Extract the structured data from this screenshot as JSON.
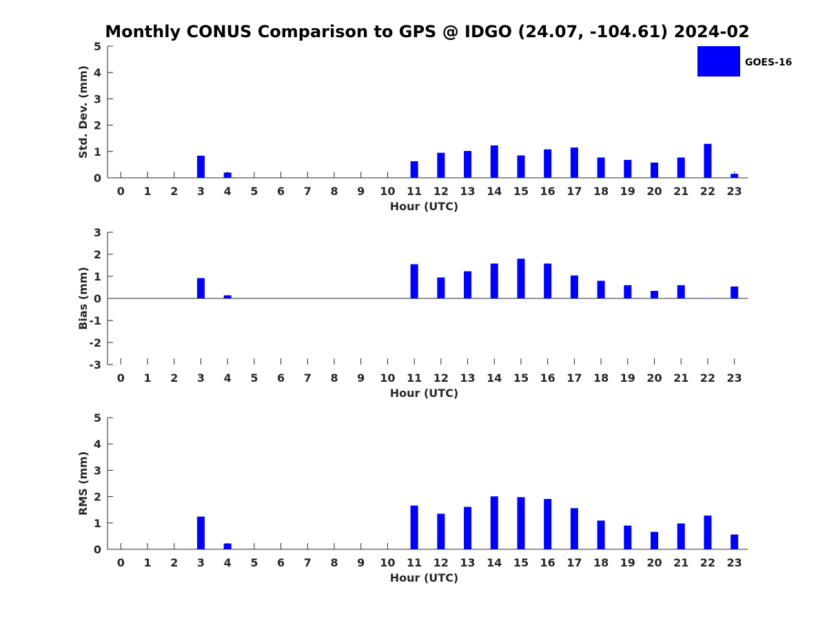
{
  "title": "Monthly CONUS Comparison to GPS @ IDGO (24.07, -104.61) 2024-02",
  "legend": {
    "label": "GOES-16",
    "color": "#0000ff"
  },
  "chart_data": [
    {
      "type": "bar",
      "name": "std",
      "ylabel": "Std. Dev. (mm)",
      "xlabel": "Hour (UTC)",
      "xlim": [
        -0.5,
        23.5
      ],
      "ylim": [
        0,
        5
      ],
      "yticks": [
        0,
        1,
        2,
        3,
        4,
        5
      ],
      "x": [
        0,
        1,
        2,
        3,
        4,
        5,
        6,
        7,
        8,
        9,
        10,
        11,
        12,
        13,
        14,
        15,
        16,
        17,
        18,
        19,
        20,
        21,
        22,
        23
      ],
      "series": [
        {
          "name": "GOES-16",
          "color": "#0000ff",
          "values": [
            null,
            null,
            null,
            0.84,
            0.2,
            null,
            null,
            null,
            null,
            null,
            null,
            0.63,
            0.95,
            1.02,
            1.23,
            0.85,
            1.08,
            1.15,
            0.77,
            0.68,
            0.58,
            0.77,
            1.29,
            0.15
          ]
        }
      ],
      "grid": false
    },
    {
      "type": "bar",
      "name": "bias",
      "ylabel": "Bias (mm)",
      "xlabel": "Hour (UTC)",
      "xlim": [
        -0.5,
        23.5
      ],
      "ylim": [
        -3,
        3
      ],
      "yticks": [
        -3,
        -2,
        -1,
        0,
        1,
        2,
        3
      ],
      "x": [
        0,
        1,
        2,
        3,
        4,
        5,
        6,
        7,
        8,
        9,
        10,
        11,
        12,
        13,
        14,
        15,
        16,
        17,
        18,
        19,
        20,
        21,
        22,
        23
      ],
      "series": [
        {
          "name": "GOES-16",
          "color": "#0000ff",
          "values": [
            null,
            null,
            null,
            0.92,
            0.14,
            null,
            null,
            null,
            null,
            null,
            null,
            1.55,
            0.95,
            1.23,
            1.58,
            1.8,
            1.58,
            1.04,
            0.8,
            0.6,
            0.34,
            0.6,
            0.0,
            0.54
          ]
        }
      ],
      "grid": false
    },
    {
      "type": "bar",
      "name": "rms",
      "ylabel": "RMS (mm)",
      "xlabel": "Hour (UTC)",
      "xlim": [
        -0.5,
        23.5
      ],
      "ylim": [
        0,
        5
      ],
      "yticks": [
        0,
        1,
        2,
        3,
        4,
        5
      ],
      "x": [
        0,
        1,
        2,
        3,
        4,
        5,
        6,
        7,
        8,
        9,
        10,
        11,
        12,
        13,
        14,
        15,
        16,
        17,
        18,
        19,
        20,
        21,
        22,
        23
      ],
      "series": [
        {
          "name": "GOES-16",
          "color": "#0000ff",
          "values": [
            null,
            null,
            null,
            1.24,
            0.22,
            null,
            null,
            null,
            null,
            null,
            null,
            1.66,
            1.35,
            1.61,
            2.01,
            1.98,
            1.91,
            1.56,
            1.09,
            0.9,
            0.66,
            0.98,
            1.28,
            0.56
          ]
        }
      ],
      "grid": false
    }
  ]
}
